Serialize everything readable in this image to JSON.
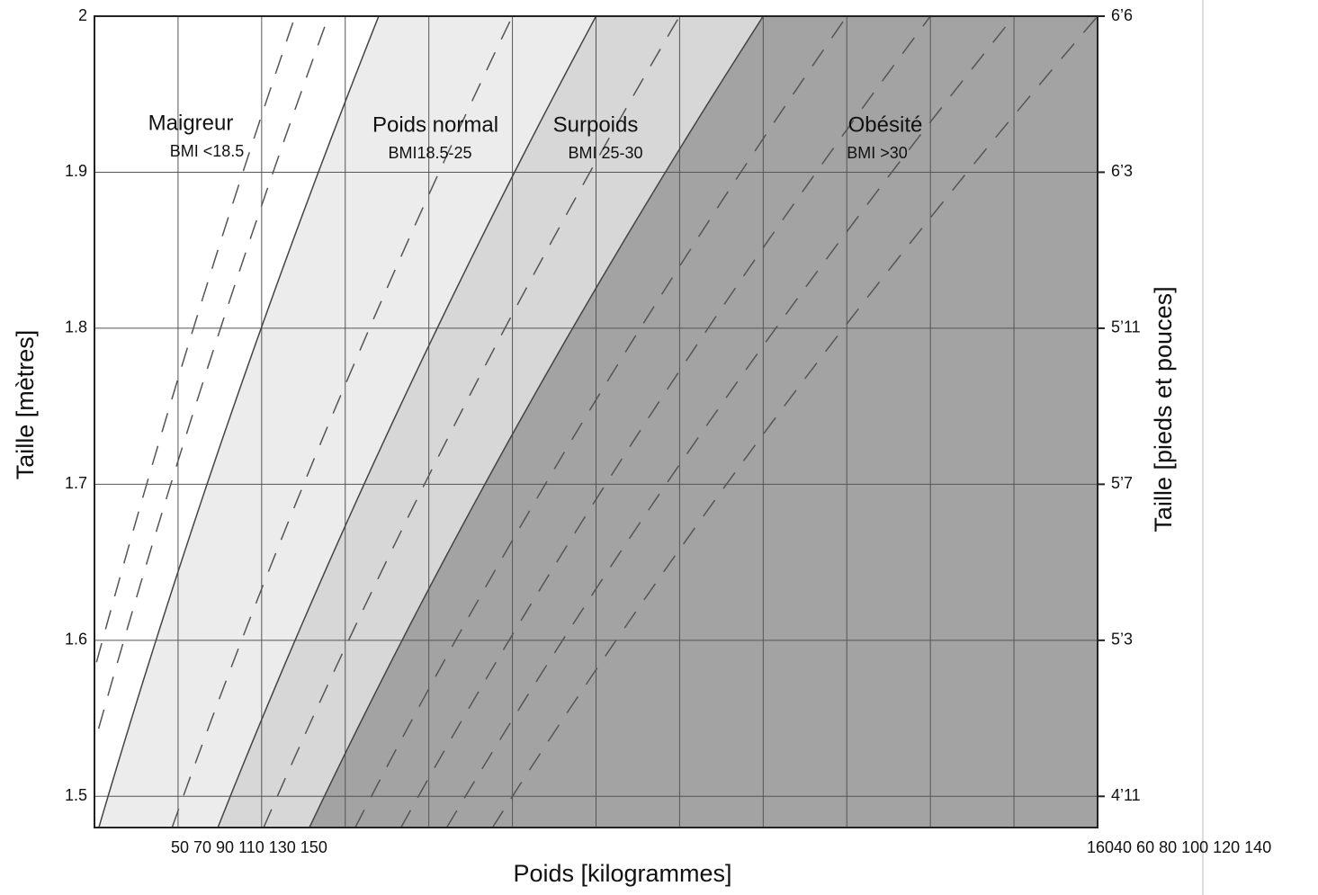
{
  "chart_data": {
    "type": "bmi",
    "xlabel": "Poids [kilogrammes]",
    "ylabel": "Taille [mètres]",
    "y2label": "Taille [pieds et pouces]",
    "xlim": [
      40,
      160
    ],
    "ylim": [
      1.48,
      2
    ],
    "xticks": [
      40,
      50,
      60,
      70,
      80,
      90,
      100,
      110,
      120,
      130,
      140,
      150,
      160
    ],
    "x_tick_text": [
      "50 70 90 110 130 150",
      "16040 60 80 100 120 140"
    ],
    "yticks": [
      1.5,
      1.6,
      1.7,
      1.8,
      1.9,
      2
    ],
    "y2ticks": [
      {
        "value": 1.5,
        "label": "4’11"
      },
      {
        "value": 1.6,
        "label": "5’3"
      },
      {
        "value": 1.7,
        "label": "5’7"
      },
      {
        "value": 1.8,
        "label": "5’11"
      },
      {
        "value": 1.9,
        "label": "6’3"
      },
      {
        "value": 2,
        "label": "6’6"
      }
    ],
    "boundaries": [
      18.5,
      25,
      30
    ],
    "zones": [
      {
        "name": "Maigreur",
        "label": "BMI <18.5",
        "color": "#ffffff"
      },
      {
        "name": "Poids normal",
        "label": "BMI18.5-25",
        "color": "#ececec"
      },
      {
        "name": "Surpoids",
        "label": "BMI 25-30",
        "color": "#d7d7d7"
      },
      {
        "name": "Obésité",
        "label": "BMI >30",
        "color": "#a3a3a3"
      }
    ],
    "dashed_bmi": [
      16,
      17,
      22.5,
      27.5,
      32.5,
      35,
      37.5,
      40
    ],
    "grid": true
  }
}
